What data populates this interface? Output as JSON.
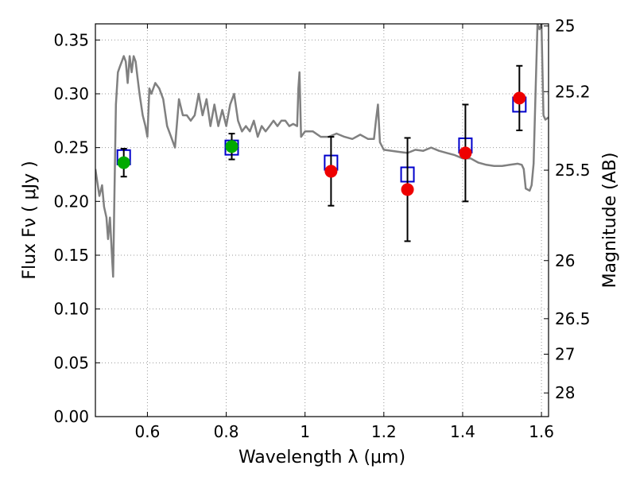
{
  "chart_data": {
    "type": "scatter",
    "xlabel": "Wavelength  λ (μm)",
    "ylabel": "Flux  Fν  ( μJy )",
    "right_ylabel": "Magnitude (AB)",
    "xlim": [
      0.468,
      1.618
    ],
    "ylim": [
      0.0,
      0.365
    ],
    "x_ticks": [
      0.6,
      0.8,
      1.0,
      1.2,
      1.4,
      1.6
    ],
    "x_tick_labels": [
      "0.6",
      "0.8",
      "1",
      "1.2",
      "1.4",
      "1.6"
    ],
    "y_ticks": [
      0.0,
      0.05,
      0.1,
      0.15,
      0.2,
      0.25,
      0.3,
      0.35
    ],
    "y_tick_labels": [
      "0.00",
      "0.05",
      "0.10",
      "0.15",
      "0.20",
      "0.25",
      "0.30",
      "0.35"
    ],
    "right_ticks": [
      {
        "label": "25",
        "flux": 0.363
      },
      {
        "label": "25.2",
        "flux": 0.302
      },
      {
        "label": "25.5",
        "flux": 0.229
      },
      {
        "label": "26",
        "flux": 0.145
      },
      {
        "label": "26.5",
        "flux": 0.091
      },
      {
        "label": "27",
        "flux": 0.058
      },
      {
        "label": "28",
        "flux": 0.022
      }
    ],
    "grid": true,
    "colors": {
      "model_line": "#808080",
      "green_points": "#00aa00",
      "red_points": "#ee0000",
      "model_boxes": "#0000cc",
      "error_bars": "#000000",
      "grid": "#999999"
    },
    "series": [
      {
        "marker": "line",
        "x": [
          0.468,
          0.478,
          0.485,
          0.49,
          0.496,
          0.5,
          0.505,
          0.51,
          0.513,
          0.516,
          0.52,
          0.525,
          0.53,
          0.535,
          0.54,
          0.545,
          0.55,
          0.555,
          0.56,
          0.565,
          0.57,
          0.575,
          0.58,
          0.588,
          0.595,
          0.6,
          0.605,
          0.61,
          0.62,
          0.63,
          0.64,
          0.65,
          0.66,
          0.67,
          0.68,
          0.69,
          0.7,
          0.71,
          0.72,
          0.73,
          0.74,
          0.75,
          0.76,
          0.77,
          0.78,
          0.79,
          0.8,
          0.81,
          0.82,
          0.83,
          0.84,
          0.85,
          0.86,
          0.87,
          0.88,
          0.89,
          0.9,
          0.91,
          0.92,
          0.93,
          0.94,
          0.95,
          0.96,
          0.97,
          0.98,
          0.983,
          0.986,
          0.99,
          1.0,
          1.02,
          1.04,
          1.06,
          1.08,
          1.1,
          1.12,
          1.14,
          1.16,
          1.175,
          1.18,
          1.185,
          1.19,
          1.2,
          1.22,
          1.24,
          1.26,
          1.28,
          1.3,
          1.32,
          1.34,
          1.36,
          1.38,
          1.4,
          1.42,
          1.44,
          1.46,
          1.48,
          1.5,
          1.52,
          1.54,
          1.55,
          1.555,
          1.56,
          1.57,
          1.575,
          1.58,
          1.585,
          1.59,
          1.595,
          1.6,
          1.605,
          1.61,
          1.618
        ],
        "y": [
          0.23,
          0.205,
          0.215,
          0.195,
          0.185,
          0.165,
          0.185,
          0.15,
          0.13,
          0.2,
          0.29,
          0.32,
          0.325,
          0.33,
          0.335,
          0.33,
          0.31,
          0.335,
          0.32,
          0.335,
          0.33,
          0.315,
          0.3,
          0.28,
          0.27,
          0.26,
          0.305,
          0.3,
          0.31,
          0.305,
          0.295,
          0.27,
          0.26,
          0.25,
          0.295,
          0.28,
          0.28,
          0.275,
          0.28,
          0.3,
          0.28,
          0.295,
          0.27,
          0.29,
          0.27,
          0.285,
          0.27,
          0.29,
          0.3,
          0.275,
          0.265,
          0.27,
          0.265,
          0.275,
          0.26,
          0.27,
          0.265,
          0.27,
          0.275,
          0.27,
          0.275,
          0.275,
          0.27,
          0.272,
          0.27,
          0.305,
          0.32,
          0.26,
          0.265,
          0.265,
          0.26,
          0.26,
          0.263,
          0.26,
          0.258,
          0.262,
          0.258,
          0.258,
          0.275,
          0.29,
          0.255,
          0.248,
          0.247,
          0.246,
          0.245,
          0.248,
          0.247,
          0.25,
          0.247,
          0.245,
          0.243,
          0.24,
          0.24,
          0.236,
          0.234,
          0.233,
          0.233,
          0.234,
          0.235,
          0.234,
          0.23,
          0.212,
          0.21,
          0.215,
          0.235,
          0.3,
          0.365,
          0.36,
          0.365,
          0.28,
          0.276,
          0.278
        ]
      },
      {
        "marker": "circle",
        "x": [
          0.54,
          0.814
        ],
        "y": [
          0.236,
          0.251
        ],
        "yerr": [
          0.013,
          0.012
        ]
      },
      {
        "marker": "circle",
        "x": [
          1.066,
          1.26,
          1.407,
          1.544
        ],
        "y": [
          0.228,
          0.211,
          0.245,
          0.296
        ],
        "yerr": [
          0.032,
          0.048,
          0.045,
          0.03
        ]
      },
      {
        "marker": "square",
        "x": [
          0.54,
          0.814,
          1.066,
          1.26,
          1.407,
          1.544
        ],
        "y": [
          0.241,
          0.25,
          0.236,
          0.225,
          0.252,
          0.29
        ]
      }
    ]
  }
}
